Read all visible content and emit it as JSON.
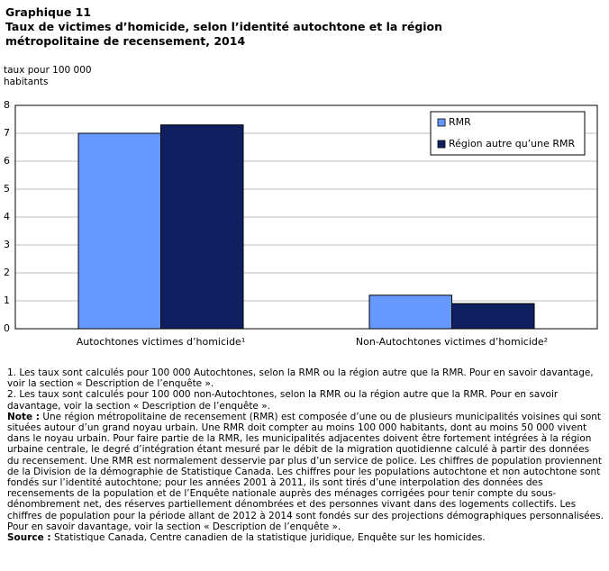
{
  "chart_data": {
    "type": "bar",
    "label": "Graphique  11",
    "title": "Taux de victimes d’homicide, selon l’identité autochtone et la région métropolitaine de recensement, 2014",
    "ylabel": "taux pour 100 000 habitants",
    "categories": [
      "Autochtones victimes d’homicide¹",
      "Non-Autochtones victimes d’homicide²"
    ],
    "series": [
      {
        "name": "RMR",
        "color": "#6699ff",
        "values": [
          7.0,
          1.2
        ]
      },
      {
        "name": "Région autre qu’une RMR",
        "color": "#0f1f5f",
        "values": [
          7.3,
          0.9
        ]
      }
    ],
    "ylim": [
      0,
      8
    ],
    "yticks": [
      0,
      1,
      2,
      3,
      4,
      5,
      6,
      7,
      8
    ],
    "grid": true,
    "legend": "upper right",
    "footnotes": [
      "1. Les taux sont calculés pour 100 000 Autochtones, selon la RMR ou la région autre que la RMR. Pour en savoir davantage, voir la section « Description de l’enquête ».",
      "2. Les taux sont calculés pour 100 000 non-Autochtones, selon la RMR ou la région autre que la RMR. Pour en savoir davantage, voir la section « Description de l’enquête »."
    ],
    "note_label": "Note :",
    "note": "Une région métropolitaine de recensement (RMR) est composée d’une ou de plusieurs municipalités voisines qui sont situées autour d’un grand noyau urbain. Une RMR doit compter au moins 100 000 habitants, dont au moins 50 000 vivent dans le noyau urbain. Pour faire partie de la RMR, les municipalités adjacentes doivent être fortement intégrées à la région urbaine centrale, le degré d’intégration étant mesuré par le débit de la migration quotidienne calculé à partir des données du recensement. Une RMR est normalement desservie par plus d’un service de police. Les chiffres de population proviennent de la Division de la démographie de Statistique Canada. Les chiffres pour les populations autochtone et non autochtone sont fondés sur l’identité autochtone; pour les années 2001 à 2011, ils sont tirés d’une interpolation des données des recensements de la population et de l’Enquête nationale auprès des ménages corrigées pour tenir compte du sous-dénombrement net, des réserves partiellement dénombrées et des personnes vivant dans des logements collectifs. Les chiffres de population pour la période allant de 2012 à 2014 sont fondés sur des projections démographiques personnalisées. Pour en savoir davantage, voir la section « Description de l’enquête ».",
    "source_label": "Source :",
    "source": "Statistique Canada, Centre canadien de la statistique juridique, Enquête sur les homicides."
  }
}
